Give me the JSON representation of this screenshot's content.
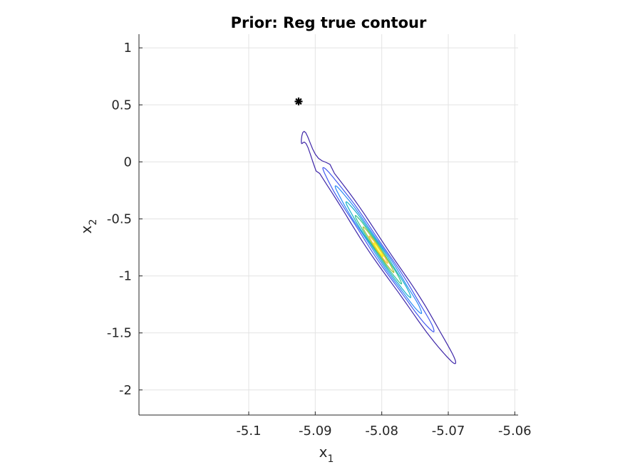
{
  "chart_data": {
    "type": "contour",
    "title": "Prior: Reg true contour",
    "xlabel": {
      "base": "x",
      "sub": "1"
    },
    "ylabel": {
      "base": "x",
      "sub": "2"
    },
    "xlim": [
      -5.1165,
      -5.0595
    ],
    "ylim": [
      -2.22,
      1.12
    ],
    "xticks": [
      -5.1,
      -5.09,
      -5.08,
      -5.07,
      -5.06
    ],
    "xtick_labels": [
      "-5.1",
      "-5.09",
      "-5.08",
      "-5.07",
      "-5.06"
    ],
    "yticks": [
      1,
      0.5,
      0,
      -0.5,
      -1,
      -1.5,
      -2
    ],
    "ytick_labels": [
      "1",
      "0.5",
      "0",
      "-0.5",
      "-1",
      "-1.5",
      "-2"
    ],
    "grid": true,
    "marker": {
      "x": -5.0925,
      "y": 0.53,
      "symbol": "asterisk",
      "color": "#000000"
    },
    "contour_center": {
      "x": -5.0805,
      "y": -0.77
    },
    "contour_direction": [
      -0.0122,
      1.06
    ],
    "contour_levels": [
      {
        "level": 1,
        "color": "#3e26a8",
        "half_length": 1.0,
        "half_width": 0.0015
      },
      {
        "level": 2,
        "color": "#4258f0",
        "half_length": 0.72,
        "half_width": 0.0011
      },
      {
        "level": 3,
        "color": "#2a89f5",
        "half_length": 0.56,
        "half_width": 0.00085
      },
      {
        "level": 4,
        "color": "#17b0c8",
        "half_length": 0.42,
        "half_width": 0.00065
      },
      {
        "level": 5,
        "color": "#36c28f",
        "half_length": 0.3,
        "half_width": 0.00048
      },
      {
        "level": 6,
        "color": "#a3c23c",
        "half_length": 0.2,
        "half_width": 0.00034
      },
      {
        "level": 7,
        "color": "#f5c63b",
        "half_length": 0.12,
        "half_width": 0.00022
      },
      {
        "level": 8,
        "color": "#f9fb15",
        "half_length": 0.06,
        "half_width": 0.00012
      }
    ]
  }
}
